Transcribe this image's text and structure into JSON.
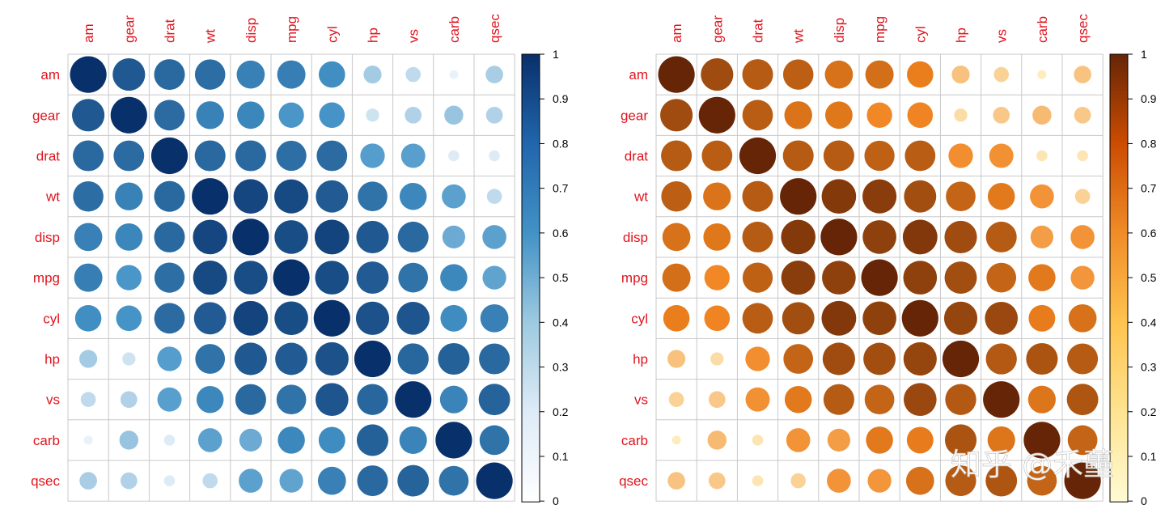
{
  "chart_data": [
    {
      "type": "heatmap",
      "style": "circle-correlation-matrix",
      "palette": "Blues",
      "color_low": "#ffffff",
      "color_mid": "#4292c6",
      "color_high": "#08306b",
      "variables": [
        "am",
        "gear",
        "drat",
        "wt",
        "disp",
        "mpg",
        "cyl",
        "hp",
        "vs",
        "carb",
        "qsec"
      ],
      "colorbar": {
        "ticks": [
          "1",
          "0.9",
          "0.8",
          "0.7",
          "0.6",
          "0.5",
          "0.4",
          "0.3",
          "0.2",
          "0.1",
          "0"
        ],
        "range": [
          0,
          1
        ]
      }
    },
    {
      "type": "heatmap",
      "style": "circle-correlation-matrix",
      "palette": "YlOrBr",
      "color_low": "#fffbd4",
      "color_mid": "#f0821e",
      "color_high": "#662506",
      "variables": [
        "am",
        "gear",
        "drat",
        "wt",
        "disp",
        "mpg",
        "cyl",
        "hp",
        "vs",
        "carb",
        "qsec"
      ],
      "colorbar": {
        "ticks": [
          "1",
          "0.9",
          "0.8",
          "0.7",
          "0.6",
          "0.5",
          "0.4",
          "0.3",
          "0.2",
          "0.1",
          "0"
        ],
        "range": [
          0,
          1
        ]
      }
    }
  ],
  "correlation_matrix": [
    [
      1.0,
      0.79,
      0.71,
      0.69,
      0.59,
      0.6,
      0.52,
      0.24,
      0.17,
      0.06,
      0.23
    ],
    [
      0.79,
      1.0,
      0.7,
      0.58,
      0.56,
      0.48,
      0.49,
      0.13,
      0.21,
      0.27,
      0.21
    ],
    [
      0.71,
      0.7,
      1.0,
      0.71,
      0.71,
      0.68,
      0.7,
      0.45,
      0.44,
      0.09,
      0.09
    ],
    [
      0.69,
      0.58,
      0.71,
      1.0,
      0.89,
      0.87,
      0.78,
      0.66,
      0.55,
      0.43,
      0.17
    ],
    [
      0.59,
      0.56,
      0.71,
      0.89,
      1.0,
      0.85,
      0.9,
      0.79,
      0.71,
      0.39,
      0.43
    ],
    [
      0.6,
      0.48,
      0.68,
      0.87,
      0.85,
      1.0,
      0.85,
      0.78,
      0.66,
      0.55,
      0.42
    ],
    [
      0.52,
      0.49,
      0.7,
      0.78,
      0.9,
      0.85,
      1.0,
      0.83,
      0.81,
      0.53,
      0.59
    ],
    [
      0.24,
      0.13,
      0.45,
      0.66,
      0.79,
      0.78,
      0.83,
      1.0,
      0.72,
      0.75,
      0.71
    ],
    [
      0.17,
      0.21,
      0.44,
      0.55,
      0.71,
      0.66,
      0.81,
      0.72,
      1.0,
      0.57,
      0.74
    ],
    [
      0.06,
      0.27,
      0.09,
      0.43,
      0.39,
      0.55,
      0.53,
      0.75,
      0.57,
      1.0,
      0.66
    ],
    [
      0.23,
      0.21,
      0.09,
      0.17,
      0.43,
      0.42,
      0.59,
      0.71,
      0.74,
      0.66,
      1.0
    ]
  ],
  "watermark": {
    "text": "知乎 @禾蘲"
  }
}
